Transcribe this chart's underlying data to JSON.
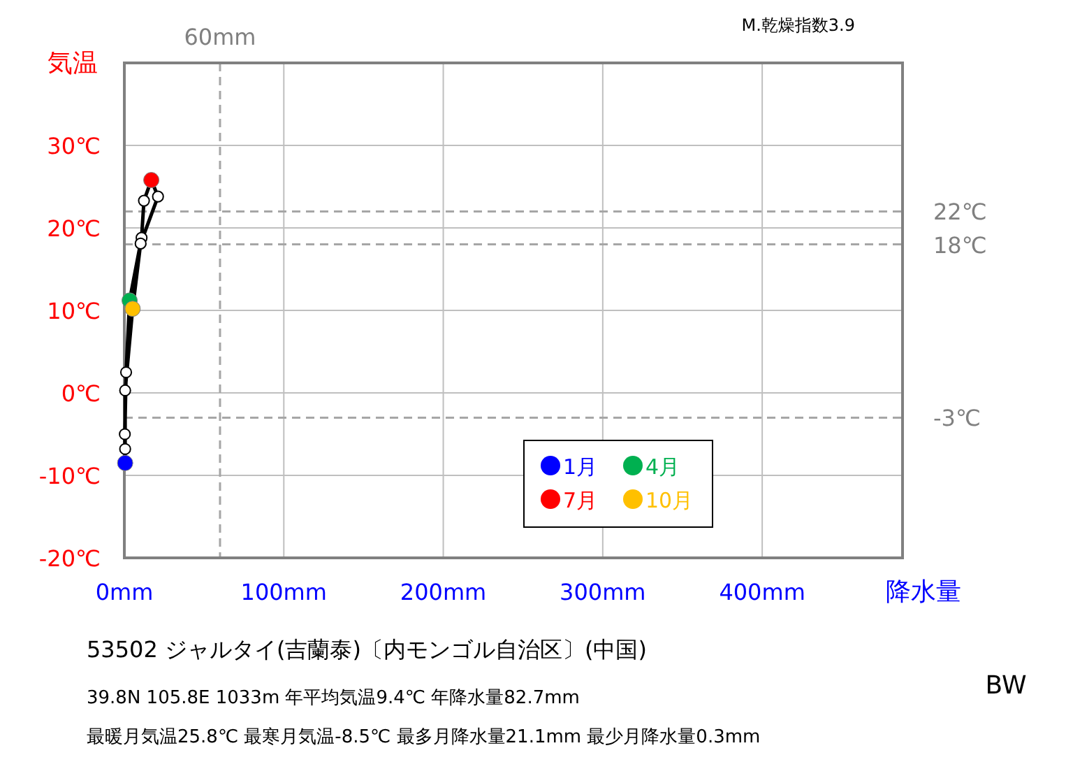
{
  "chart_data": {
    "type": "line",
    "title": "53502  ジャルタイ(吉蘭泰)〔内モンゴル自治区〕(中国)",
    "ylabel": "気温",
    "xlabel": "降水量",
    "annotations": [
      "M.乾燥指数3.9",
      "BW",
      "39.8N  105.8E 1033m  年平均気温9.4℃ 年降水量82.7mm",
      "最暖月気温25.8℃ 最寒月気温-8.5℃ 最多月降水量21.1mm 最少月降水量0.3mm"
    ],
    "xlim": [
      0,
      488
    ],
    "ylim": [
      -20,
      40
    ],
    "xticks": [
      {
        "value": 0,
        "label": "0mm"
      },
      {
        "value": 100,
        "label": "100mm"
      },
      {
        "value": 200,
        "label": "200mm"
      },
      {
        "value": 300,
        "label": "300mm"
      },
      {
        "value": 400,
        "label": "400mm"
      }
    ],
    "yticks": [
      {
        "value": -20,
        "label": "-20℃"
      },
      {
        "value": -10,
        "label": "-10℃"
      },
      {
        "value": 0,
        "label": "0℃"
      },
      {
        "value": 10,
        "label": "10℃"
      },
      {
        "value": 20,
        "label": "20℃"
      },
      {
        "value": 30,
        "label": "30℃"
      }
    ],
    "grid": true,
    "legend": "bottom right",
    "marker": "circle",
    "ref_lines": [
      {
        "axis": "y",
        "value": 22,
        "label": "22℃",
        "color": "#a6a6a6",
        "line_style": "dashed"
      },
      {
        "axis": "y",
        "value": 18,
        "label": "18℃",
        "color": "#a6a6a6",
        "line_style": "dashed"
      },
      {
        "axis": "y",
        "value": -3,
        "label": "-3℃",
        "color": "#a6a6a6",
        "line_style": "dashed"
      },
      {
        "axis": "x",
        "value": 60,
        "label": "60mm",
        "color": "#a6a6a6",
        "line_style": "dashed"
      }
    ],
    "series": [
      {
        "color": "#000000",
        "x": [
          0.5,
          0.3,
          1.1,
          3.3,
          10.8,
          12.3,
          16.9,
          21.1,
          10.2,
          5.2,
          0.5,
          0.5
        ],
        "values": [
          -8.5,
          -5.0,
          2.5,
          11.2,
          18.8,
          23.3,
          25.8,
          23.8,
          18.1,
          10.2,
          0.3,
          -6.8
        ]
      },
      {
        "type": "scatter",
        "name": "1月",
        "color": "#0000ff",
        "x": [
          0.5
        ],
        "values": [
          -8.5
        ]
      },
      {
        "type": "scatter",
        "name": "4月",
        "color": "#00b050",
        "x": [
          3.3
        ],
        "values": [
          11.2
        ]
      },
      {
        "type": "scatter",
        "name": "7月",
        "color": "#ff0000",
        "x": [
          16.9
        ],
        "values": [
          25.8
        ]
      },
      {
        "type": "scatter",
        "name": "10月",
        "color": "#ffc000",
        "x": [
          5.2
        ],
        "values": [
          10.2
        ]
      }
    ]
  }
}
